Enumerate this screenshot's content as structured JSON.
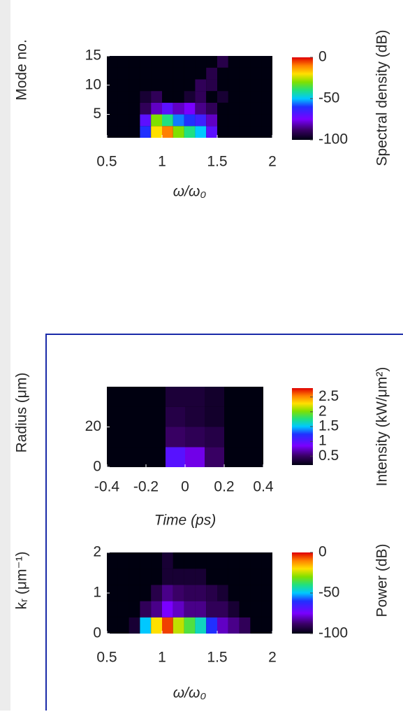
{
  "chart_data": [
    {
      "type": "heatmap",
      "ylabel": "Mode no.",
      "xlabel": "ω/ω₀",
      "colorbar_label": "Spectral density (dB)",
      "x": [
        0.55,
        0.65,
        0.75,
        0.85,
        0.95,
        1.05,
        1.15,
        1.25,
        1.35,
        1.45,
        1.55,
        1.65,
        1.75,
        1.85,
        1.95
      ],
      "y": [
        2,
        4,
        6,
        8,
        10,
        12,
        14
      ],
      "z": [
        [
          -100,
          -100,
          -100,
          -60,
          -20,
          -10,
          -30,
          -40,
          -50,
          -70,
          -100,
          -100,
          -100,
          -100,
          -100
        ],
        [
          -100,
          -100,
          -100,
          -70,
          -30,
          -40,
          -55,
          -60,
          -65,
          -80,
          -100,
          -100,
          -100,
          -100,
          -100
        ],
        [
          -100,
          -100,
          -100,
          -90,
          -80,
          -70,
          -80,
          -75,
          -85,
          -90,
          -100,
          -100,
          -100,
          -100,
          -100
        ],
        [
          -100,
          -100,
          -100,
          -95,
          -90,
          -100,
          -100,
          -95,
          -90,
          -100,
          -95,
          -100,
          -100,
          -100,
          -100
        ],
        [
          -100,
          -100,
          -100,
          -100,
          -100,
          -100,
          -100,
          -100,
          -90,
          -92,
          -100,
          -100,
          -100,
          -100,
          -100
        ],
        [
          -100,
          -100,
          -100,
          -100,
          -100,
          -100,
          -100,
          -100,
          -100,
          -92,
          -100,
          -100,
          -100,
          -100,
          -100
        ],
        [
          -100,
          -100,
          -100,
          -100,
          -100,
          -100,
          -100,
          -100,
          -100,
          -100,
          -92,
          -100,
          -100,
          -100,
          -100
        ]
      ],
      "xlim": [
        0.5,
        2
      ],
      "ylim": [
        1,
        15
      ],
      "xticks": [
        0.5,
        1,
        1.5,
        2
      ],
      "yticks": [
        5,
        10,
        15
      ],
      "clim": [
        -100,
        0
      ],
      "cticks": [
        0,
        -50,
        -100
      ]
    },
    {
      "type": "heatmap",
      "ylabel": "Radius (μm)",
      "xlabel": "Time (ps)",
      "colorbar_label": "Intensity (kW/μm²)",
      "x": [
        -0.35,
        -0.25,
        -0.15,
        -0.05,
        0.05,
        0.15,
        0.25,
        0.35
      ],
      "y": [
        5,
        15,
        25,
        35
      ],
      "z": [
        [
          0.2,
          0.2,
          0.2,
          1.0,
          0.8,
          0.5,
          0.2,
          0.2
        ],
        [
          0.2,
          0.2,
          0.2,
          0.5,
          0.45,
          0.4,
          0.2,
          0.2
        ],
        [
          0.2,
          0.2,
          0.2,
          0.4,
          0.35,
          0.3,
          0.2,
          0.2
        ],
        [
          0.2,
          0.2,
          0.2,
          0.35,
          0.35,
          0.3,
          0.2,
          0.2
        ]
      ],
      "xlim": [
        -0.4,
        0.4
      ],
      "ylim": [
        0,
        40
      ],
      "xticks": [
        -0.4,
        -0.2,
        0,
        0.2,
        0.4
      ],
      "yticks": [
        0,
        20
      ],
      "clim": [
        0.2,
        2.8
      ],
      "cticks": [
        2.5,
        2,
        1.5,
        1,
        0.5
      ]
    },
    {
      "type": "heatmap",
      "ylabel": "kᵣ (μm⁻¹)",
      "xlabel": "ω/ω₀",
      "colorbar_label": "Power (dB)",
      "x": [
        0.55,
        0.65,
        0.75,
        0.85,
        0.95,
        1.05,
        1.15,
        1.25,
        1.35,
        1.45,
        1.55,
        1.65,
        1.75,
        1.85,
        1.95
      ],
      "y": [
        0.2,
        0.6,
        1.0,
        1.4,
        1.8
      ],
      "z": [
        [
          -100,
          -100,
          -95,
          -50,
          -20,
          -5,
          -25,
          -35,
          -45,
          -60,
          -80,
          -85,
          -90,
          -100,
          -100
        ],
        [
          -100,
          -100,
          -100,
          -90,
          -85,
          -75,
          -80,
          -85,
          -85,
          -90,
          -90,
          -95,
          -100,
          -100,
          -100
        ],
        [
          -100,
          -100,
          -100,
          -100,
          -92,
          -85,
          -88,
          -90,
          -90,
          -92,
          -95,
          -100,
          -100,
          -100,
          -100
        ],
        [
          -100,
          -100,
          -100,
          -100,
          -100,
          -95,
          -95,
          -95,
          -95,
          -100,
          -100,
          -100,
          -100,
          -100,
          -100
        ],
        [
          -100,
          -100,
          -100,
          -100,
          -100,
          -95,
          -100,
          -100,
          -100,
          -100,
          -100,
          -100,
          -100,
          -100,
          -100
        ]
      ],
      "xlim": [
        0.5,
        2
      ],
      "ylim": [
        0,
        2
      ],
      "xticks": [
        0.5,
        1,
        1.5,
        2
      ],
      "yticks": [
        0,
        1,
        2
      ],
      "clim": [
        -100,
        0
      ],
      "cticks": [
        0,
        -50,
        -100
      ]
    }
  ]
}
